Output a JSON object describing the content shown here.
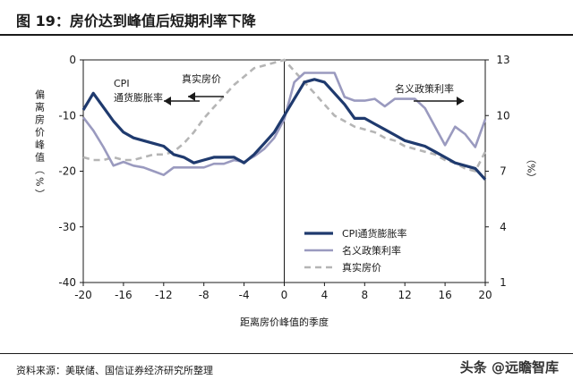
{
  "figure": {
    "title": "图 19：房价达到峰值后短期利率下降",
    "source": "资料来源：美联储、国信证券经济研究所整理",
    "watermark": "头条 @远瞻智库"
  },
  "chart_data": {
    "type": "line",
    "xlabel": "距离房价峰值的季度",
    "ylabel_left": "偏离房价峰值（%）",
    "ylabel_right": "（%）",
    "xlim": [
      -20,
      20
    ],
    "x_ticks": [
      "-20",
      "-16",
      "-12",
      "-8",
      "-4",
      "0",
      "4",
      "8",
      "12",
      "16",
      "20"
    ],
    "ylim_left": [
      -40,
      0
    ],
    "y_ticks_left": [
      "0",
      "-10",
      "-20",
      "-30",
      "-40"
    ],
    "ylim_right": [
      1,
      13
    ],
    "y_ticks_right": [
      "13",
      "10",
      "7",
      "4",
      "1"
    ],
    "grid": false,
    "reference_line_x": 0,
    "legend_position": "bottom-right",
    "colors": {
      "cpi_real_rate": "#1f3a6e",
      "nominal_policy_rate": "#9a9abf",
      "real_house_price": "#b5b5b5"
    },
    "annotations": [
      {
        "text": "CPI\n通货膨胀率",
        "arrow": "left"
      },
      {
        "text": "真实房价",
        "arrow": "left"
      },
      {
        "text": "名义政策利率",
        "arrow": "right"
      }
    ],
    "series": [
      {
        "name": "CPI通货膨胀率",
        "axis": "left",
        "style": "solid-thick",
        "x": [
          -20,
          -19,
          -18,
          -17,
          -16,
          -15,
          -14,
          -13,
          -12,
          -11,
          -10,
          -9,
          -8,
          -7,
          -6,
          -5,
          -4,
          -3,
          -2,
          -1,
          0,
          1,
          2,
          3,
          4,
          5,
          6,
          7,
          8,
          9,
          10,
          11,
          12,
          13,
          14,
          15,
          16,
          17,
          18,
          19,
          20
        ],
        "values": [
          -9,
          -6,
          -8.5,
          -11,
          -13,
          -14,
          -14.5,
          -15,
          -15.5,
          -17,
          -17.5,
          -18.5,
          -18,
          -17.5,
          -17.5,
          -17.5,
          -18.5,
          -17,
          -15,
          -13,
          -10,
          -7,
          -4,
          -3.5,
          -4,
          -6,
          -8,
          -10.5,
          -10.5,
          -11.5,
          -12.5,
          -13.5,
          -14.5,
          -15,
          -15.5,
          -16.5,
          -17.5,
          -18.5,
          -19,
          -19.5,
          -21.5
        ]
      },
      {
        "name": "名义政策利率",
        "axis": "right",
        "style": "solid-light",
        "x": [
          -20,
          -19,
          -18,
          -17,
          -16,
          -15,
          -14,
          -13,
          -12,
          -11,
          -10,
          -9,
          -8,
          -7,
          -6,
          -5,
          -4,
          -3,
          -2,
          -1,
          0,
          1,
          2,
          3,
          4,
          5,
          6,
          7,
          8,
          9,
          10,
          11,
          12,
          13,
          14,
          15,
          16,
          17,
          18,
          19,
          20
        ],
        "values": [
          9.9,
          9.2,
          8.3,
          7.3,
          7.5,
          7.3,
          7.2,
          7.0,
          6.8,
          7.2,
          7.2,
          7.2,
          7.2,
          7.4,
          7.4,
          7.6,
          7.5,
          7.8,
          8.2,
          8.8,
          9.8,
          11.8,
          12.3,
          12.3,
          12.3,
          12.3,
          11.0,
          10.8,
          10.8,
          10.9,
          10.5,
          10.9,
          10.9,
          10.9,
          10.4,
          9.4,
          8.4,
          9.4,
          9.0,
          8.3,
          9.8
        ]
      },
      {
        "name": "真实房价",
        "axis": "left",
        "style": "dashed",
        "x": [
          -20,
          -19,
          -18,
          -17,
          -16,
          -15,
          -14,
          -13,
          -12,
          -11,
          -10,
          -9,
          -8,
          -7,
          -6,
          -5,
          -4,
          -3,
          -2,
          -1,
          0,
          1,
          2,
          3,
          4,
          5,
          6,
          7,
          8,
          9,
          10,
          11,
          12,
          13,
          14,
          15,
          16,
          17,
          18,
          19,
          20
        ],
        "values": [
          -17.5,
          -18,
          -18,
          -17.5,
          -18,
          -18,
          -17.5,
          -17,
          -17,
          -16.5,
          -15,
          -13,
          -10.5,
          -8.5,
          -6.5,
          -4.5,
          -3,
          -1.5,
          -1,
          -0.5,
          0,
          -2,
          -4,
          -6,
          -8,
          -10,
          -11,
          -12,
          -12.5,
          -13,
          -14,
          -14.5,
          -15.5,
          -16,
          -16.5,
          -17,
          -18,
          -18.5,
          -19.5,
          -20,
          -16.5
        ]
      }
    ]
  }
}
